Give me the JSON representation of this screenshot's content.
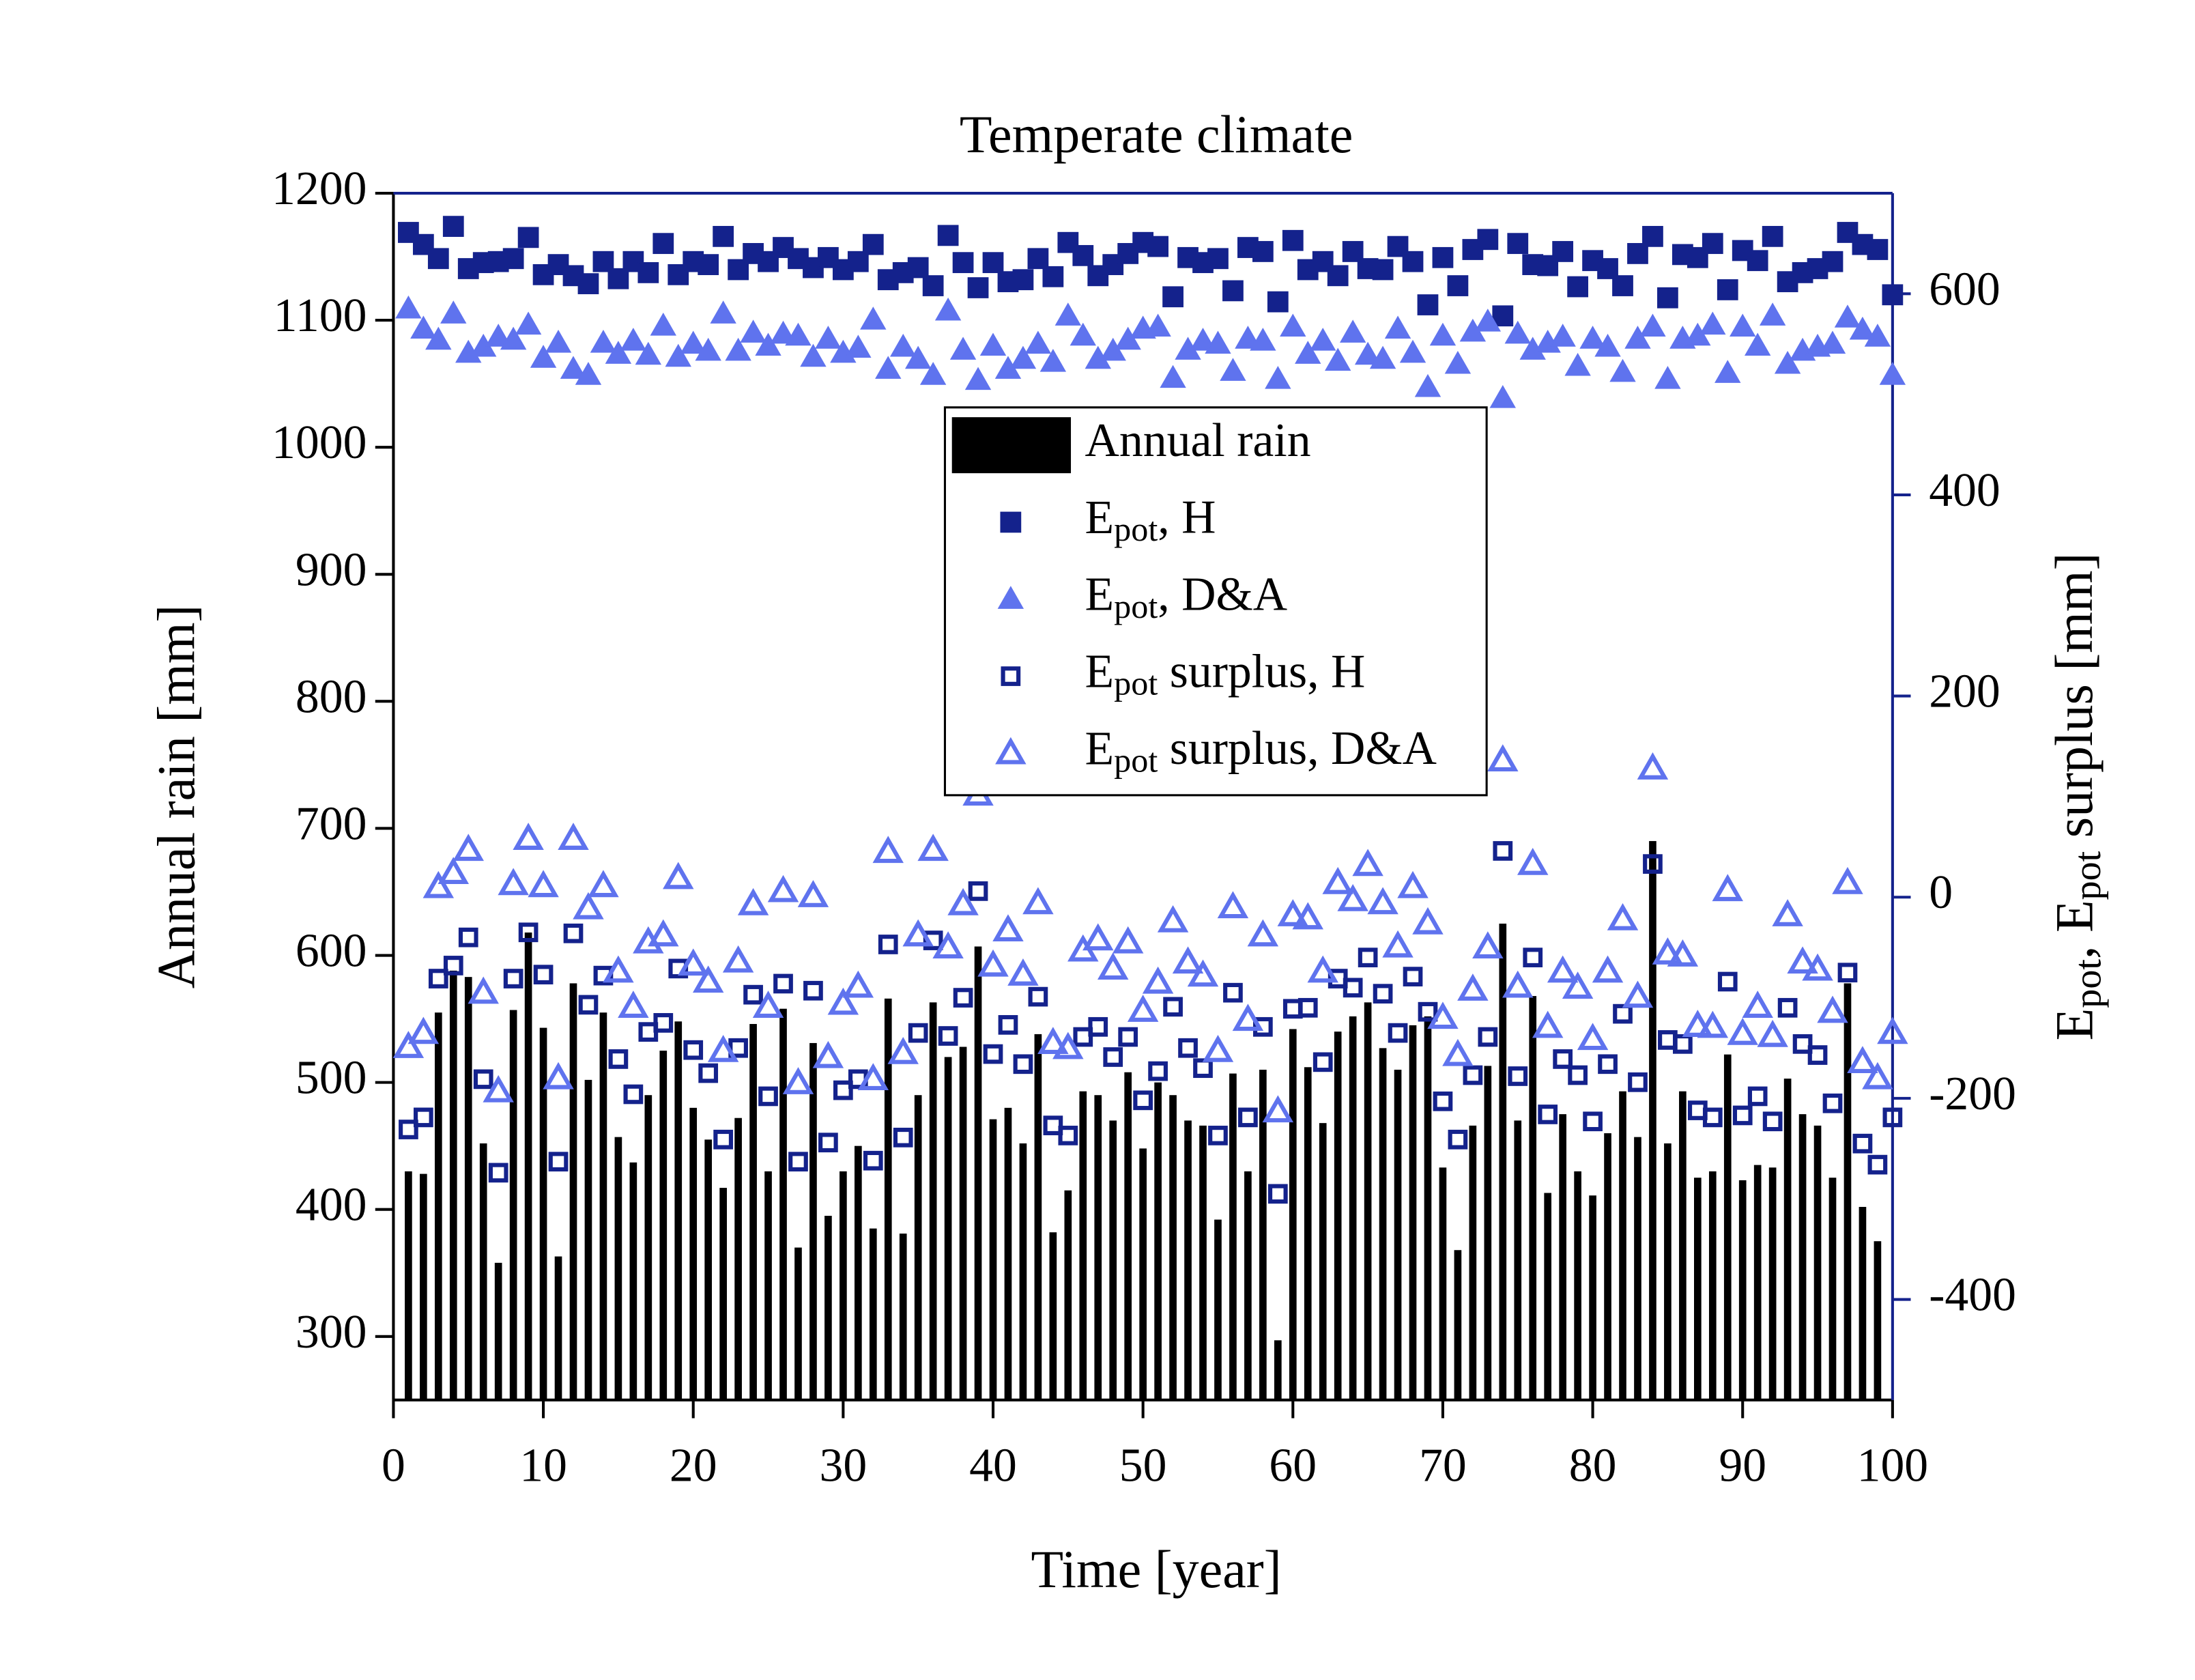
{
  "chart_data": {
    "type": "combo",
    "title": "Temperate climate",
    "x_label": "Time [year]",
    "y_label": "Annual rain [mm]",
    "y2_label": "Epot, Epot surplus [mm]",
    "xlim": [
      0,
      100
    ],
    "xticks": [
      0,
      10,
      20,
      30,
      40,
      50,
      60,
      70,
      80,
      90,
      100
    ],
    "ylim": [
      250,
      1200
    ],
    "yticks": [
      300,
      400,
      500,
      600,
      700,
      800,
      900,
      1000,
      1100,
      1200
    ],
    "y2lim": [
      -500,
      700
    ],
    "y2ticks": [
      -400,
      -200,
      0,
      200,
      400,
      600
    ],
    "y2_color": "#14228c",
    "legend": "top-center",
    "x": [
      1,
      2,
      3,
      4,
      5,
      6,
      7,
      8,
      9,
      10,
      11,
      12,
      13,
      14,
      15,
      16,
      17,
      18,
      19,
      20,
      21,
      22,
      23,
      24,
      25,
      26,
      27,
      28,
      29,
      30,
      31,
      32,
      33,
      34,
      35,
      36,
      37,
      38,
      39,
      40,
      41,
      42,
      43,
      44,
      45,
      46,
      47,
      48,
      49,
      50,
      51,
      52,
      53,
      54,
      55,
      56,
      57,
      58,
      59,
      60,
      61,
      62,
      63,
      64,
      65,
      66,
      67,
      68,
      69,
      70,
      71,
      72,
      73,
      74,
      75,
      76,
      77,
      78,
      79,
      80,
      81,
      82,
      83,
      84,
      85,
      86,
      87,
      88,
      89,
      90,
      91,
      92,
      93,
      94,
      95,
      96,
      97,
      98,
      99,
      100
    ],
    "series": [
      {
        "name": "Annual rain",
        "type": "bar",
        "color": "#000000",
        "values": [
          430,
          428,
          555,
          588,
          583,
          452,
          358,
          557,
          618,
          543,
          363,
          578,
          502,
          555,
          457,
          437,
          490,
          525,
          548,
          480,
          455,
          417,
          472,
          546,
          430,
          558,
          370,
          531,
          395,
          430,
          450,
          385,
          566,
          381,
          490,
          563,
          520,
          528,
          607,
          471,
          480,
          452,
          538,
          382,
          415,
          493,
          490,
          470,
          508,
          448,
          500,
          490,
          470,
          466,
          392,
          507,
          430,
          510,
          297,
          542,
          512,
          468,
          540,
          552,
          563,
          527,
          510,
          545,
          552,
          433,
          368,
          466,
          513,
          625,
          470,
          568,
          413,
          475,
          430,
          411,
          460,
          493,
          457,
          690,
          452,
          493,
          425,
          430,
          522,
          423,
          435,
          433,
          503,
          475,
          466,
          425,
          578,
          402,
          375,
          null
        ]
      },
      {
        "name": "Epot, H",
        "type": "scatter",
        "marker": "square",
        "filled": true,
        "axis": "y2",
        "color": "#14228c",
        "values": [
          661,
          649,
          635,
          667,
          625,
          631,
          632,
          635,
          656,
          619,
          629,
          618,
          610,
          632,
          615,
          632,
          621,
          650,
          619,
          632,
          629,
          657,
          624,
          640,
          632,
          646,
          635,
          626,
          636,
          624,
          632,
          649,
          614,
          621,
          626,
          608,
          658,
          631,
          606,
          631,
          612,
          614,
          635,
          617,
          651,
          638,
          618,
          629,
          640,
          651,
          647,
          597,
          636,
          631,
          635,
          603,
          646,
          642,
          592,
          653,
          624,
          632,
          618,
          642,
          625,
          624,
          647,
          632,
          589,
          636,
          608,
          644,
          654,
          578,
          650,
          629,
          628,
          642,
          607,
          633,
          625,
          608,
          640,
          657,
          596,
          639,
          636,
          650,
          604,
          643,
          633,
          657,
          612,
          621,
          625,
          632,
          661,
          649,
          644,
          599
        ]
      },
      {
        "name": "Epot, D&A",
        "type": "scatter",
        "marker": "triangle",
        "filled": true,
        "axis": "y2",
        "color": "#5f73ee",
        "values": [
          585,
          565,
          554,
          580,
          541,
          547,
          557,
          554,
          569,
          536,
          551,
          525,
          519,
          551,
          540,
          553,
          539,
          568,
          537,
          550,
          543,
          580,
          543,
          561,
          548,
          560,
          558,
          537,
          555,
          541,
          546,
          574,
          525,
          547,
          535,
          519,
          583,
          544,
          514,
          548,
          525,
          535,
          550,
          532,
          578,
          558,
          535,
          543,
          554,
          565,
          567,
          516,
          544,
          553,
          550,
          523,
          555,
          553,
          515,
          567,
          540,
          553,
          533,
          561,
          539,
          535,
          565,
          541,
          507,
          558,
          530,
          562,
          572,
          496,
          560,
          544,
          551,
          557,
          528,
          555,
          547,
          522,
          555,
          567,
          515,
          555,
          558,
          569,
          521,
          567,
          548,
          578,
          530,
          543,
          547,
          550,
          576,
          564,
          557,
          519
        ]
      },
      {
        "name": "Epot surplus, H",
        "type": "scatter",
        "marker": "square",
        "filled": false,
        "axis": "y2",
        "color": "#14228c",
        "values": [
          -231,
          -219,
          -81,
          -68,
          -40,
          -181,
          -274,
          -81,
          -35,
          -77,
          -263,
          -36,
          -107,
          -78,
          -161,
          -196,
          -134,
          -125,
          -71,
          -152,
          -175,
          -241,
          -150,
          -97,
          -198,
          -86,
          -263,
          -93,
          -244,
          -192,
          -181,
          -262,
          -47,
          -239,
          -135,
          -43,
          -138,
          -100,
          6,
          -156,
          -127,
          -166,
          -99,
          -227,
          -237,
          -139,
          -129,
          -159,
          -139,
          -202,
          -173,
          -109,
          -150,
          -170,
          -237,
          -95,
          -219,
          -129,
          -295,
          -111,
          -110,
          -164,
          -81,
          -90,
          -60,
          -96,
          -135,
          -79,
          -114,
          -203,
          -241,
          -177,
          -139,
          46,
          -178,
          -60,
          -216,
          -161,
          -177,
          -223,
          -166,
          -116,
          -184,
          33,
          -142,
          -146,
          -212,
          -219,
          -84,
          -217,
          -198,
          -223,
          -110,
          -146,
          -157,
          -205,
          -75,
          -245,
          -266,
          -219
        ]
      },
      {
        "name": "Epot surplus, D&A",
        "type": "scatter",
        "marker": "triangle",
        "filled": false,
        "axis": "y2",
        "color": "#5f73ee",
        "values": [
          -149,
          -135,
          10,
          24,
          47,
          -95,
          -193,
          13,
          58,
          11,
          -180,
          58,
          -11,
          11,
          -74,
          -109,
          -45,
          -38,
          19,
          -67,
          -84,
          -153,
          -64,
          -7,
          -109,
          6,
          -185,
          1,
          -159,
          -106,
          -89,
          -181,
          45,
          -155,
          -38,
          47,
          -50,
          -7,
          102,
          -68,
          -33,
          -77,
          -6,
          -145,
          -150,
          -53,
          -42,
          -71,
          -45,
          -113,
          -85,
          -24,
          -65,
          -78,
          -153,
          -10,
          -122,
          -38,
          -213,
          -18,
          -21,
          -74,
          14,
          -3,
          32,
          -6,
          -49,
          10,
          -26,
          -120,
          -157,
          -92,
          -50,
          136,
          -89,
          33,
          -129,
          -74,
          -90,
          -141,
          -74,
          -22,
          -99,
          128,
          -56,
          -58,
          -128,
          -129,
          7,
          -136,
          -109,
          -138,
          -18,
          -65,
          -72,
          -114,
          14,
          -164,
          -180,
          -135
        ]
      }
    ]
  }
}
